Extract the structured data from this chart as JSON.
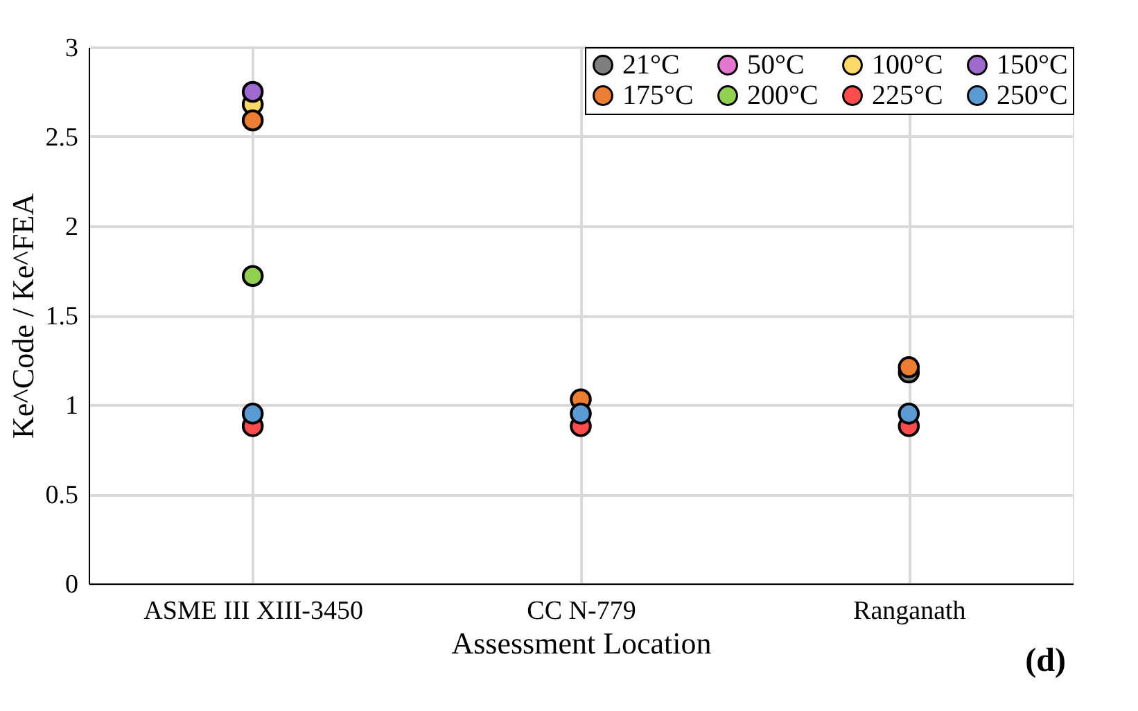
{
  "chart_data": {
    "type": "scatter",
    "xlabel": "Assessment Location",
    "ylabel": "Ke^Code / Ke^FEA",
    "categories": [
      "ASME III XIII-3450",
      "CC N-779",
      "Ranganath"
    ],
    "series": [
      {
        "name": "21°C",
        "color": "#7f7f7f",
        "values": [
          null,
          null,
          1.18
        ]
      },
      {
        "name": "50°C",
        "color": "#e377d2",
        "values": [
          null,
          null,
          null
        ]
      },
      {
        "name": "100°C",
        "color": "#ffd966",
        "values": [
          2.68,
          null,
          null
        ]
      },
      {
        "name": "150°C",
        "color": "#9e6ad0",
        "values": [
          2.75,
          null,
          null
        ]
      },
      {
        "name": "175°C",
        "color": "#ed7d31",
        "values": [
          2.59,
          1.03,
          1.21
        ]
      },
      {
        "name": "200°C",
        "color": "#92d050",
        "values": [
          1.72,
          null,
          null
        ]
      },
      {
        "name": "225°C",
        "color": "#ff4b4b",
        "values": [
          0.88,
          0.88,
          0.88
        ]
      },
      {
        "name": "250°C",
        "color": "#5b9bd5",
        "values": [
          0.95,
          0.95,
          0.95
        ]
      }
    ],
    "ylim": [
      0,
      3
    ],
    "yticks": [
      0,
      0.5,
      1,
      1.5,
      2,
      2.5,
      3
    ],
    "grid": true,
    "legend": "top right",
    "marker": "circle",
    "annotations": [
      "(d)"
    ]
  }
}
